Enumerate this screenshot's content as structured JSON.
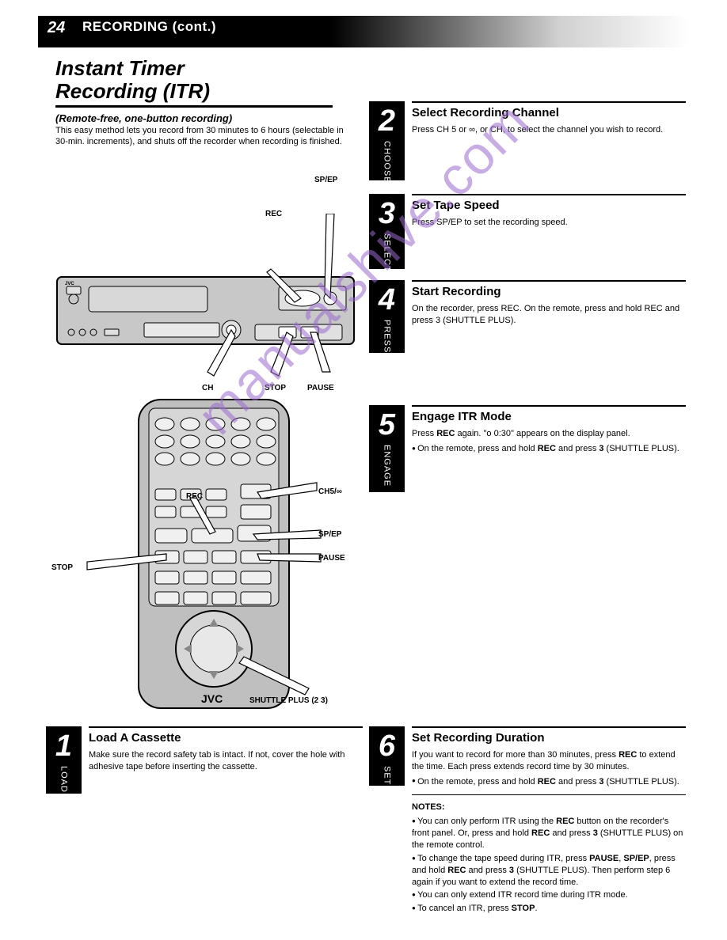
{
  "header": {
    "page_number": "24",
    "section": "RECORDING (cont.)"
  },
  "title": {
    "line1": "Instant Timer",
    "line2": "Recording (ITR)",
    "subtitle": "(Remote-free, one-button recording)"
  },
  "intro": "This easy method lets you record from 30 minutes to 6 hours (selectable in 30-min. increments), and shuts off the recorder when recording is finished.",
  "vcr_callouts": {
    "rec": "REC",
    "sp_ep": "SP/EP",
    "ch": "CH",
    "stop": "STOP",
    "pause": "PAUSE"
  },
  "remote_callouts": {
    "stop": "STOP",
    "rec": "REC",
    "ch": "CH5/∞",
    "sp_ep": "SP/EP",
    "pause": "PAUSE",
    "shuttle": "SHUTTLE PLUS (2 3)"
  },
  "or_text": "or",
  "steps": {
    "s1": {
      "num": "1",
      "vert": "LOAD",
      "title": "Load A Cassette",
      "body": [
        "Make sure the record safety tab is intact. If not, cover the hole with adhesive tape before inserting the cassette."
      ]
    },
    "s2": {
      "num": "2",
      "vert": "CHOOSE",
      "title": "Select Recording Channel",
      "body": [
        "Press CH 5 or ∞, or CH, to select the channel you wish to record."
      ]
    },
    "s3": {
      "num": "3",
      "vert": "SELECT",
      "title": "Set Tape Speed",
      "body": [
        "Press SP/EP to set the recording speed."
      ]
    },
    "s4": {
      "num": "4",
      "vert": "PRESS",
      "title": "Start Recording",
      "body": [
        "On the recorder, press REC. On the remote, press and hold REC and press 3 (SHUTTLE PLUS)."
      ]
    },
    "s5": {
      "num": "5",
      "vert": "ENGAGE",
      "title": "Engage ITR Mode",
      "body_html": "<p>Press <b>REC</b> again. \"o 0:30\" appears on the display panel.</p><ul><li class='bullet'>On the remote, press and hold <b>REC</b> and press <b>3</b> (SHUTTLE PLUS).</li></ul>"
    },
    "s6": {
      "num": "6",
      "vert": "SET",
      "title": "Set Recording Duration",
      "body_html": "<p>If you want to record for more than 30 minutes, press <b>REC</b> to extend the time. Each press extends record time by 30 minutes.</p><ul><li class='bullet'>On the remote, press and hold <b>REC</b> and press <b>3</b> (SHUTTLE PLUS).</li></ul><hr class='step-rule'><p><b>NOTES:</b></p><ul><li class='bullet'>You can only perform ITR using the <b>REC</b> button on the recorder's front panel. Or, press and hold <b>REC</b> and press <b>3</b> (SHUTTLE PLUS) on the remote control.</li><li class='bullet'>To change the tape speed during ITR, press <b>PAUSE</b>, <b>SP/EP</b>, press and hold <b>REC</b> and press <b>3</b> (SHUTTLE PLUS). Then perform step 6 again if you want to extend the record time.</li><li class='bullet'>You can only extend ITR record time during ITR mode.</li><li class='bullet'>To cancel an ITR, press <b>STOP</b>.</li></ul>"
    }
  },
  "colors": {
    "watermark": "#9b6bcf",
    "vcr_fill": "#c8c8c8",
    "remote_fill": "#bfbfbf"
  }
}
